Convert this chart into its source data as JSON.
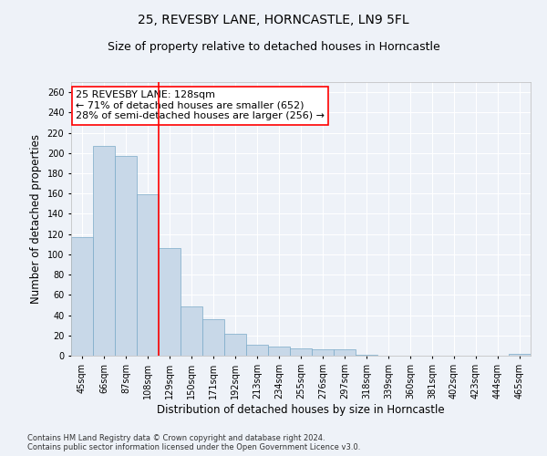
{
  "title": "25, REVESBY LANE, HORNCASTLE, LN9 5FL",
  "subtitle": "Size of property relative to detached houses in Horncastle",
  "xlabel": "Distribution of detached houses by size in Horncastle",
  "ylabel": "Number of detached properties",
  "footer_line1": "Contains HM Land Registry data © Crown copyright and database right 2024.",
  "footer_line2": "Contains public sector information licensed under the Open Government Licence v3.0.",
  "annotation_line1": "25 REVESBY LANE: 128sqm",
  "annotation_line2": "← 71% of detached houses are smaller (652)",
  "annotation_line3": "28% of semi-detached houses are larger (256) →",
  "bar_categories": [
    "45sqm",
    "66sqm",
    "87sqm",
    "108sqm",
    "129sqm",
    "150sqm",
    "171sqm",
    "192sqm",
    "213sqm",
    "234sqm",
    "255sqm",
    "276sqm",
    "297sqm",
    "318sqm",
    "339sqm",
    "360sqm",
    "381sqm",
    "402sqm",
    "423sqm",
    "444sqm",
    "465sqm"
  ],
  "bar_values": [
    117,
    207,
    197,
    159,
    106,
    49,
    36,
    22,
    11,
    9,
    7,
    6,
    6,
    1,
    0,
    0,
    0,
    0,
    0,
    0,
    2
  ],
  "bar_color": "#c8d8e8",
  "bar_edge_color": "#7aaac8",
  "red_line_index": 4,
  "ylim": [
    0,
    270
  ],
  "yticks": [
    0,
    20,
    40,
    60,
    80,
    100,
    120,
    140,
    160,
    180,
    200,
    220,
    240,
    260
  ],
  "bg_color": "#eef2f8",
  "plot_bg_color": "#eef2f8",
  "grid_color": "#ffffff",
  "title_fontsize": 10,
  "subtitle_fontsize": 9,
  "annotation_fontsize": 8,
  "tick_fontsize": 7,
  "label_fontsize": 8.5,
  "footer_fontsize": 6
}
